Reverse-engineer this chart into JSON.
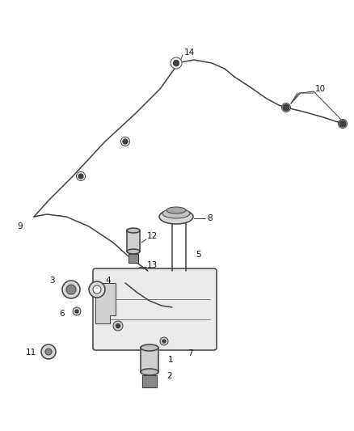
{
  "bg_color": "#ffffff",
  "line_color": "#404040",
  "label_color": "#111111",
  "figsize": [
    4.38,
    5.33
  ],
  "dpi": 100,
  "label_fs": 7.5,
  "lw_main": 1.1,
  "lw_thin": 0.7,
  "lw_thick": 2.0
}
